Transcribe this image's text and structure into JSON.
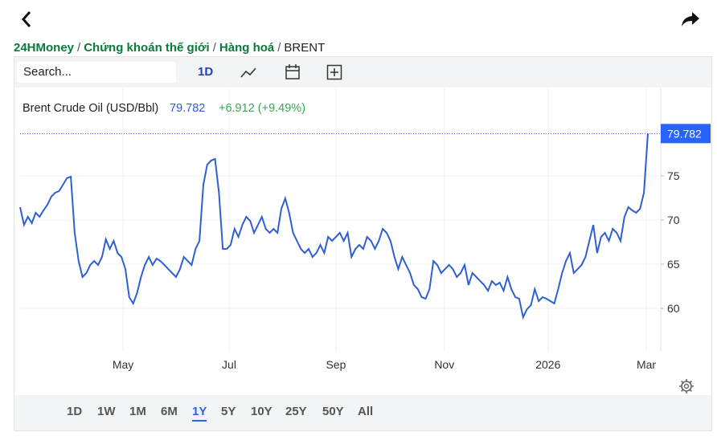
{
  "header": {
    "breadcrumb": [
      "24HMoney",
      "Chứng khoán thế giới",
      "Hàng hoá",
      "BRENT"
    ],
    "separator": "/"
  },
  "toolbar": {
    "search": "Search...",
    "interval": "1D"
  },
  "legend": {
    "name": "Brent Crude Oil (USD/Bbl)",
    "change": "+6.912 (+9.49%)"
  },
  "ranges": [
    "1D",
    "1W",
    "1M",
    "6M",
    "1Y",
    "5Y",
    "10Y",
    "25Y",
    "50Y",
    "All"
  ],
  "chart_data": {
    "type": "line",
    "series": [
      {
        "color": "#2f5fd0",
        "values": [
          71.45,
          69.45,
          70.36,
          69.64,
          70.82,
          70.36,
          71.09,
          71.73,
          72.64,
          73.09,
          73.27,
          74.0,
          74.73,
          74.91,
          68.55,
          65.36,
          63.55,
          64.0,
          64.91,
          65.36,
          64.91,
          65.82,
          67.82,
          66.73,
          67.64,
          66.27,
          65.82,
          64.45,
          61.27,
          60.55,
          61.73,
          63.55,
          64.91,
          65.82,
          64.91,
          65.64,
          65.36,
          64.91,
          64.45,
          64.0,
          63.55,
          64.45,
          65.82,
          65.36,
          64.91,
          66.73,
          67.64,
          74.0,
          76.27,
          76.73,
          76.91,
          73.09,
          66.73,
          66.73,
          67.18,
          69.0,
          68.09,
          69.45,
          70.36,
          69.91,
          68.55,
          69.45,
          70.36,
          69.0,
          68.55,
          69.0,
          68.55,
          71.27,
          72.45,
          70.82,
          68.55,
          67.64,
          66.73,
          66.27,
          66.73,
          65.82,
          66.27,
          67.18,
          66.27,
          68.09,
          67.64,
          68.09,
          68.55,
          67.64,
          68.55,
          65.82,
          66.73,
          67.18,
          66.73,
          68.09,
          67.64,
          66.73,
          67.64,
          69.0,
          68.55,
          67.64,
          65.82,
          64.45,
          65.82,
          64.91,
          64.0,
          62.64,
          62.18,
          61.27,
          61.09,
          62.18,
          65.36,
          64.91,
          64.0,
          64.45,
          64.91,
          64.45,
          63.55,
          64.0,
          64.91,
          62.64,
          64.0,
          63.55,
          63.09,
          62.64,
          62.0,
          63.09,
          62.64,
          62.91,
          62.0,
          63.55,
          62.18,
          61.27,
          61.09,
          59.0,
          59.91,
          60.36,
          62.18,
          60.82,
          61.27,
          61.09,
          60.82,
          60.55,
          62.18,
          64.0,
          65.36,
          66.27,
          64.0,
          64.45,
          64.91,
          65.82,
          67.64,
          69.45,
          66.27,
          68.09,
          68.55,
          67.64,
          69.0,
          68.55,
          67.64,
          70.36,
          71.45,
          71.09,
          70.82,
          71.27,
          73.09,
          79.782
        ]
      }
    ],
    "xlim": [
      0,
      164.3
    ],
    "xticks": [
      {
        "value": 26.4,
        "label": "May"
      },
      {
        "value": 53.6,
        "label": "Jul"
      },
      {
        "value": 81.0,
        "label": "Sep"
      },
      {
        "value": 108.8,
        "label": "Nov"
      },
      {
        "value": 135.4,
        "label": "2026"
      },
      {
        "value": 160.6,
        "label": "Mar"
      }
    ],
    "ylim": [
      55.1,
      84.9
    ],
    "yticks": [
      60,
      65,
      70,
      75
    ],
    "grid": true,
    "last_label_color": "#2962ff"
  }
}
